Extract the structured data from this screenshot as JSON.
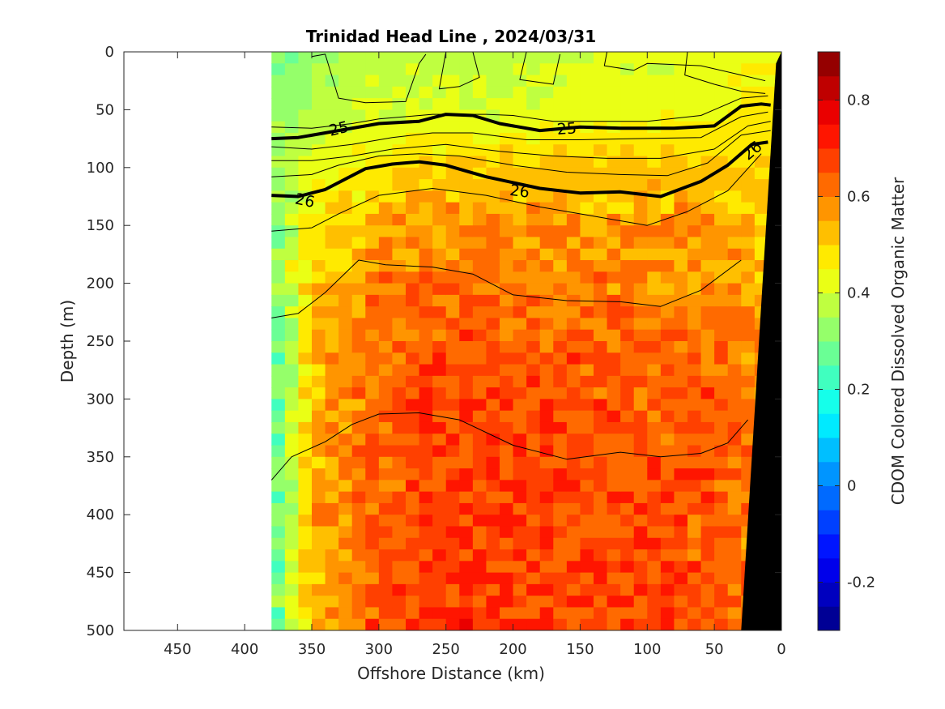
{
  "chart_data": {
    "type": "heatmap",
    "title": "Trinidad Head Line , 2024/03/31",
    "xlabel": "Offshore Distance (km)",
    "ylabel": "Depth (m)",
    "colorbar_label": "CDOM Colored Dissolved Organic Matter",
    "xlim": [
      490,
      0
    ],
    "ylim": [
      500,
      0
    ],
    "x_reversed": true,
    "y_reversed": true,
    "x_ticks": [
      450,
      400,
      350,
      300,
      250,
      200,
      150,
      100,
      50,
      0
    ],
    "y_ticks": [
      0,
      50,
      100,
      150,
      200,
      250,
      300,
      350,
      400,
      450,
      500
    ],
    "colorbar_range": [
      -0.3,
      0.9
    ],
    "colorbar_ticks": [
      -0.2,
      0,
      0.2,
      0.4,
      0.6,
      0.8
    ],
    "colormap": "jet",
    "data_extent_x": [
      380,
      0
    ],
    "grid": false,
    "cdom_field": {
      "description_rows_depth": [
        0,
        50,
        100,
        150,
        200,
        250,
        300,
        350,
        400,
        450,
        500
      ],
      "columns_distance": [
        380,
        350,
        300,
        250,
        200,
        150,
        100,
        50,
        10
      ],
      "values": [
        [
          0.3,
          0.32,
          0.38,
          0.38,
          0.38,
          0.4,
          0.4,
          0.42,
          0.44
        ],
        [
          0.34,
          0.36,
          0.4,
          0.4,
          0.4,
          0.42,
          0.42,
          0.44,
          0.46
        ],
        [
          0.36,
          0.42,
          0.48,
          0.5,
          0.52,
          0.52,
          0.52,
          0.52,
          0.5
        ],
        [
          0.3,
          0.44,
          0.56,
          0.58,
          0.58,
          0.56,
          0.56,
          0.56,
          0.52
        ],
        [
          0.3,
          0.5,
          0.6,
          0.62,
          0.6,
          0.6,
          0.58,
          0.58,
          0.54
        ],
        [
          0.22,
          0.52,
          0.62,
          0.66,
          0.64,
          0.64,
          0.62,
          0.62,
          0.56
        ],
        [
          0.22,
          0.52,
          0.64,
          0.68,
          0.66,
          0.66,
          0.64,
          0.66,
          0.58
        ],
        [
          0.24,
          0.54,
          0.64,
          0.68,
          0.68,
          0.66,
          0.66,
          0.66,
          0.58
        ],
        [
          0.2,
          0.54,
          0.64,
          0.68,
          0.68,
          0.66,
          0.66,
          0.64,
          0.58
        ],
        [
          0.24,
          0.54,
          0.64,
          0.68,
          0.68,
          0.66,
          0.68,
          0.64,
          0.58
        ],
        [
          0.26,
          0.52,
          0.66,
          0.7,
          0.68,
          0.68,
          0.68,
          0.66,
          0.6
        ]
      ]
    },
    "contours": [
      {
        "label": "25",
        "bold": true,
        "points": [
          [
            380,
            75
          ],
          [
            360,
            74
          ],
          [
            340,
            70
          ],
          [
            300,
            62
          ],
          [
            270,
            60
          ],
          [
            250,
            54
          ],
          [
            230,
            55
          ],
          [
            210,
            62
          ],
          [
            180,
            68
          ],
          [
            150,
            65
          ],
          [
            120,
            66
          ],
          [
            80,
            66
          ],
          [
            50,
            64
          ],
          [
            30,
            47
          ],
          [
            15,
            45
          ],
          [
            8,
            46
          ]
        ]
      },
      {
        "label": "26",
        "bold": true,
        "points": [
          [
            380,
            124
          ],
          [
            360,
            125
          ],
          [
            340,
            119
          ],
          [
            310,
            101
          ],
          [
            290,
            97
          ],
          [
            270,
            95
          ],
          [
            250,
            98
          ],
          [
            220,
            108
          ],
          [
            180,
            118
          ],
          [
            150,
            122
          ],
          [
            120,
            121
          ],
          [
            90,
            125
          ],
          [
            60,
            112
          ],
          [
            40,
            98
          ],
          [
            22,
            80
          ],
          [
            10,
            78
          ]
        ]
      },
      {
        "label": "",
        "bold": false,
        "points": [
          [
            380,
            65
          ],
          [
            350,
            66
          ],
          [
            320,
            62
          ],
          [
            300,
            58
          ],
          [
            260,
            54
          ],
          [
            220,
            54
          ],
          [
            200,
            55
          ],
          [
            170,
            60
          ],
          [
            140,
            60
          ],
          [
            100,
            60
          ],
          [
            60,
            55
          ],
          [
            30,
            40
          ],
          [
            10,
            38
          ]
        ]
      },
      {
        "label": "",
        "bold": false,
        "points": [
          [
            380,
            82
          ],
          [
            350,
            84
          ],
          [
            320,
            80
          ],
          [
            290,
            74
          ],
          [
            260,
            70
          ],
          [
            230,
            70
          ],
          [
            190,
            76
          ],
          [
            150,
            76
          ],
          [
            110,
            75
          ],
          [
            60,
            74
          ],
          [
            30,
            56
          ],
          [
            10,
            52
          ]
        ]
      },
      {
        "label": "",
        "bold": false,
        "points": [
          [
            380,
            94
          ],
          [
            350,
            94
          ],
          [
            320,
            90
          ],
          [
            290,
            84
          ],
          [
            250,
            80
          ],
          [
            210,
            86
          ],
          [
            170,
            90
          ],
          [
            130,
            92
          ],
          [
            90,
            92
          ],
          [
            50,
            84
          ],
          [
            25,
            64
          ],
          [
            8,
            60
          ]
        ]
      },
      {
        "label": "",
        "bold": false,
        "points": [
          [
            380,
            108
          ],
          [
            350,
            106
          ],
          [
            330,
            98
          ],
          [
            300,
            90
          ],
          [
            270,
            88
          ],
          [
            240,
            90
          ],
          [
            200,
            98
          ],
          [
            160,
            104
          ],
          [
            120,
            106
          ],
          [
            85,
            107
          ],
          [
            55,
            96
          ],
          [
            30,
            72
          ],
          [
            8,
            68
          ]
        ]
      },
      {
        "label": "",
        "bold": false,
        "points": [
          [
            380,
            155
          ],
          [
            350,
            152
          ],
          [
            330,
            140
          ],
          [
            300,
            124
          ],
          [
            260,
            118
          ],
          [
            220,
            124
          ],
          [
            180,
            134
          ],
          [
            140,
            142
          ],
          [
            100,
            150
          ],
          [
            70,
            138
          ],
          [
            40,
            120
          ],
          [
            15,
            88
          ]
        ]
      },
      {
        "label": "",
        "bold": false,
        "points": [
          [
            380,
            230
          ],
          [
            360,
            226
          ],
          [
            340,
            208
          ],
          [
            315,
            180
          ],
          [
            295,
            184
          ],
          [
            260,
            186
          ],
          [
            230,
            192
          ],
          [
            200,
            210
          ],
          [
            160,
            215
          ],
          [
            120,
            216
          ],
          [
            90,
            220
          ],
          [
            60,
            206
          ],
          [
            30,
            180
          ]
        ]
      },
      {
        "label": "",
        "bold": false,
        "points": [
          [
            380,
            370
          ],
          [
            365,
            350
          ],
          [
            340,
            337
          ],
          [
            320,
            322
          ],
          [
            300,
            313
          ],
          [
            270,
            312
          ],
          [
            240,
            318
          ],
          [
            200,
            340
          ],
          [
            160,
            352
          ],
          [
            120,
            346
          ],
          [
            90,
            350
          ],
          [
            60,
            347
          ],
          [
            40,
            338
          ],
          [
            25,
            318
          ]
        ]
      },
      {
        "label": "",
        "bold": false,
        "points": [
          [
            350,
            4
          ],
          [
            340,
            2
          ],
          [
            330,
            40
          ],
          [
            310,
            44
          ],
          [
            280,
            43
          ],
          [
            270,
            10
          ],
          [
            265,
            2
          ]
        ]
      },
      {
        "label": "",
        "bold": false,
        "points": [
          [
            250,
            0
          ],
          [
            255,
            32
          ],
          [
            240,
            30
          ],
          [
            225,
            22
          ],
          [
            230,
            0
          ]
        ]
      },
      {
        "label": "",
        "bold": false,
        "points": [
          [
            190,
            0
          ],
          [
            195,
            24
          ],
          [
            170,
            28
          ],
          [
            165,
            2
          ]
        ]
      },
      {
        "label": "",
        "bold": false,
        "points": [
          [
            130,
            0
          ],
          [
            132,
            12
          ],
          [
            110,
            16
          ],
          [
            100,
            10
          ],
          [
            60,
            12
          ],
          [
            30,
            20
          ],
          [
            12,
            25
          ]
        ]
      },
      {
        "label": "",
        "bold": false,
        "points": [
          [
            70,
            0
          ],
          [
            72,
            20
          ],
          [
            50,
            28
          ],
          [
            30,
            34
          ],
          [
            12,
            36
          ]
        ]
      }
    ],
    "bathymetry": {
      "description": "seafloor shown in black at the shelf edge",
      "points": [
        [
          0,
          0
        ],
        [
          0,
          500
        ],
        [
          30,
          500
        ],
        [
          4,
          10
        ]
      ]
    }
  }
}
